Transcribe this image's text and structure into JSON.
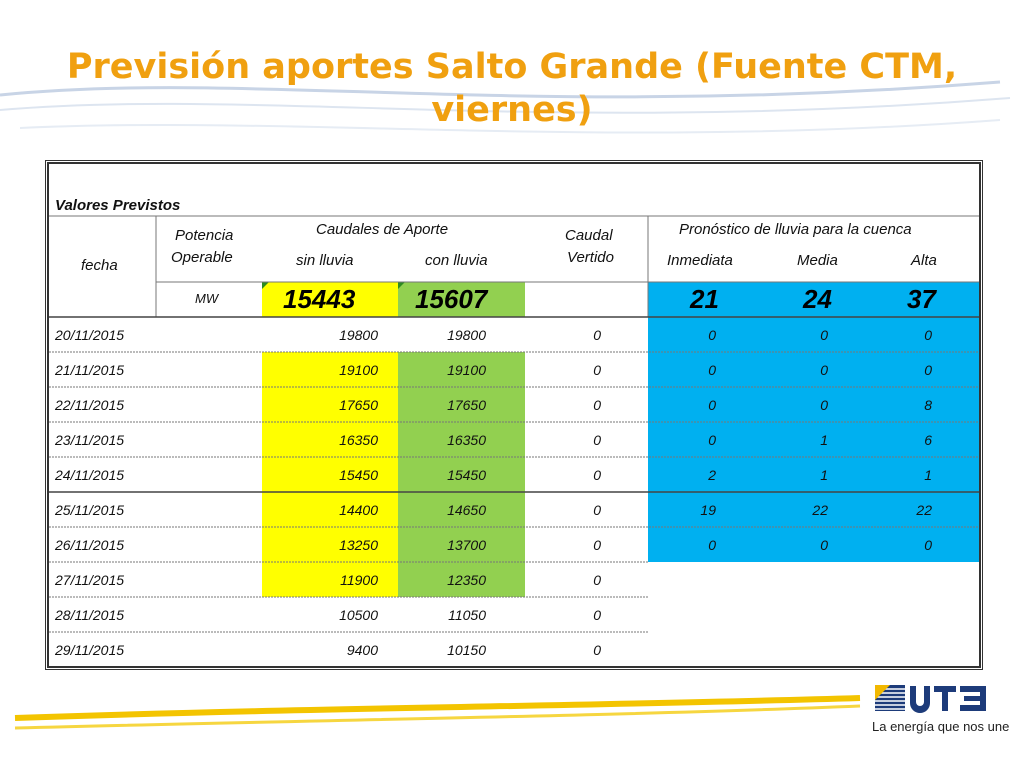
{
  "title": "Previsión aportes Salto Grande (Fuente CTM, viernes)",
  "table": {
    "section_label": "Valores Previstos",
    "headers": {
      "fecha": "fecha",
      "potencia_line1": "Potencia",
      "potencia_line2": "Operable",
      "caudales_group": "Caudales de Aporte",
      "sin_lluvia": "sin lluvia",
      "con_lluvia": "con lluvia",
      "caudal_line1": "Caudal",
      "caudal_line2": "Vertido",
      "pronostico_group": "Pronóstico de lluvia para la cuenca",
      "inmediata": "Inmediata",
      "media": "Media",
      "alta": "Alta"
    },
    "summary": {
      "unit": "MW",
      "sin_lluvia": "15443",
      "con_lluvia": "15607",
      "inmediata": "21",
      "media": "24",
      "alta": "37"
    },
    "rows": [
      {
        "fecha": "20/11/2015",
        "sin": "19800",
        "con": "19800",
        "vertido": "0",
        "inm": "0",
        "med": "0",
        "alt": "0"
      },
      {
        "fecha": "21/11/2015",
        "sin": "19100",
        "con": "19100",
        "vertido": "0",
        "inm": "0",
        "med": "0",
        "alt": "0"
      },
      {
        "fecha": "22/11/2015",
        "sin": "17650",
        "con": "17650",
        "vertido": "0",
        "inm": "0",
        "med": "0",
        "alt": "8"
      },
      {
        "fecha": "23/11/2015",
        "sin": "16350",
        "con": "16350",
        "vertido": "0",
        "inm": "0",
        "med": "1",
        "alt": "6"
      },
      {
        "fecha": "24/11/2015",
        "sin": "15450",
        "con": "15450",
        "vertido": "0",
        "inm": "2",
        "med": "1",
        "alt": "1"
      },
      {
        "fecha": "25/11/2015",
        "sin": "14400",
        "con": "14650",
        "vertido": "0",
        "inm": "19",
        "med": "22",
        "alt": "22"
      },
      {
        "fecha": "26/11/2015",
        "sin": "13250",
        "con": "13700",
        "vertido": "0",
        "inm": "0",
        "med": "0",
        "alt": "0"
      },
      {
        "fecha": "27/11/2015",
        "sin": "11900",
        "con": "12350",
        "vertido": "0"
      },
      {
        "fecha": "28/11/2015",
        "sin": "10500",
        "con": "11050",
        "vertido": "0"
      },
      {
        "fecha": "29/11/2015",
        "sin": "9400",
        "con": "10150",
        "vertido": "0"
      }
    ]
  },
  "colors": {
    "title": "#f0a010",
    "yellow": "#ffff00",
    "green": "#92d050",
    "blue": "#00b0f0"
  },
  "logo": {
    "brand": "UTE",
    "tagline": "La energía que nos une"
  }
}
